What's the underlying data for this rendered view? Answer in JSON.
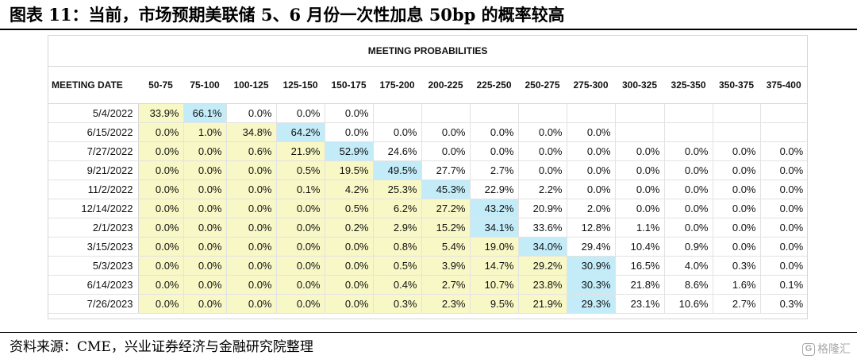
{
  "figure": {
    "title": "图表 11：当前，市场预期美联储 5、6 月份一次性加息 50bp 的概率较高",
    "source": "资料来源：CME，兴业证券经济与金融研究院整理",
    "watermark": "格隆汇",
    "watermark_icon": "G"
  },
  "table": {
    "title": "MEETING PROBABILITIES",
    "date_header": "MEETING DATE",
    "columns": [
      "50-75",
      "75-100",
      "100-125",
      "125-150",
      "150-175",
      "175-200",
      "200-225",
      "225-250",
      "250-275",
      "275-300",
      "300-325",
      "325-350",
      "350-375",
      "375-400"
    ],
    "rows": [
      {
        "date": "5/4/2022",
        "cells": [
          {
            "v": "33.9%",
            "c": "y"
          },
          {
            "v": "66.1%",
            "c": "b"
          },
          {
            "v": "0.0%",
            "c": ""
          },
          {
            "v": "0.0%",
            "c": ""
          },
          {
            "v": "0.0%",
            "c": ""
          },
          {
            "v": "",
            "c": ""
          },
          {
            "v": "",
            "c": ""
          },
          {
            "v": "",
            "c": ""
          },
          {
            "v": "",
            "c": ""
          },
          {
            "v": "",
            "c": ""
          },
          {
            "v": "",
            "c": ""
          },
          {
            "v": "",
            "c": ""
          },
          {
            "v": "",
            "c": ""
          },
          {
            "v": "",
            "c": ""
          }
        ]
      },
      {
        "date": "6/15/2022",
        "cells": [
          {
            "v": "0.0%",
            "c": "y"
          },
          {
            "v": "1.0%",
            "c": "y"
          },
          {
            "v": "34.8%",
            "c": "y"
          },
          {
            "v": "64.2%",
            "c": "b"
          },
          {
            "v": "0.0%",
            "c": ""
          },
          {
            "v": "0.0%",
            "c": ""
          },
          {
            "v": "0.0%",
            "c": ""
          },
          {
            "v": "0.0%",
            "c": ""
          },
          {
            "v": "0.0%",
            "c": ""
          },
          {
            "v": "0.0%",
            "c": ""
          },
          {
            "v": "",
            "c": ""
          },
          {
            "v": "",
            "c": ""
          },
          {
            "v": "",
            "c": ""
          },
          {
            "v": "",
            "c": ""
          }
        ]
      },
      {
        "date": "7/27/2022",
        "cells": [
          {
            "v": "0.0%",
            "c": "y"
          },
          {
            "v": "0.0%",
            "c": "y"
          },
          {
            "v": "0.6%",
            "c": "y"
          },
          {
            "v": "21.9%",
            "c": "y"
          },
          {
            "v": "52.9%",
            "c": "b"
          },
          {
            "v": "24.6%",
            "c": ""
          },
          {
            "v": "0.0%",
            "c": ""
          },
          {
            "v": "0.0%",
            "c": ""
          },
          {
            "v": "0.0%",
            "c": ""
          },
          {
            "v": "0.0%",
            "c": ""
          },
          {
            "v": "0.0%",
            "c": ""
          },
          {
            "v": "0.0%",
            "c": ""
          },
          {
            "v": "0.0%",
            "c": ""
          },
          {
            "v": "0.0%",
            "c": ""
          }
        ]
      },
      {
        "date": "9/21/2022",
        "cells": [
          {
            "v": "0.0%",
            "c": "y"
          },
          {
            "v": "0.0%",
            "c": "y"
          },
          {
            "v": "0.0%",
            "c": "y"
          },
          {
            "v": "0.5%",
            "c": "y"
          },
          {
            "v": "19.5%",
            "c": "y"
          },
          {
            "v": "49.5%",
            "c": "b"
          },
          {
            "v": "27.7%",
            "c": ""
          },
          {
            "v": "2.7%",
            "c": ""
          },
          {
            "v": "0.0%",
            "c": ""
          },
          {
            "v": "0.0%",
            "c": ""
          },
          {
            "v": "0.0%",
            "c": ""
          },
          {
            "v": "0.0%",
            "c": ""
          },
          {
            "v": "0.0%",
            "c": ""
          },
          {
            "v": "0.0%",
            "c": ""
          }
        ]
      },
      {
        "date": "11/2/2022",
        "cells": [
          {
            "v": "0.0%",
            "c": "y"
          },
          {
            "v": "0.0%",
            "c": "y"
          },
          {
            "v": "0.0%",
            "c": "y"
          },
          {
            "v": "0.1%",
            "c": "y"
          },
          {
            "v": "4.2%",
            "c": "y"
          },
          {
            "v": "25.3%",
            "c": "y"
          },
          {
            "v": "45.3%",
            "c": "b"
          },
          {
            "v": "22.9%",
            "c": ""
          },
          {
            "v": "2.2%",
            "c": ""
          },
          {
            "v": "0.0%",
            "c": ""
          },
          {
            "v": "0.0%",
            "c": ""
          },
          {
            "v": "0.0%",
            "c": ""
          },
          {
            "v": "0.0%",
            "c": ""
          },
          {
            "v": "0.0%",
            "c": ""
          }
        ]
      },
      {
        "date": "12/14/2022",
        "cells": [
          {
            "v": "0.0%",
            "c": "y"
          },
          {
            "v": "0.0%",
            "c": "y"
          },
          {
            "v": "0.0%",
            "c": "y"
          },
          {
            "v": "0.0%",
            "c": "y"
          },
          {
            "v": "0.5%",
            "c": "y"
          },
          {
            "v": "6.2%",
            "c": "y"
          },
          {
            "v": "27.2%",
            "c": "y"
          },
          {
            "v": "43.2%",
            "c": "b"
          },
          {
            "v": "20.9%",
            "c": ""
          },
          {
            "v": "2.0%",
            "c": ""
          },
          {
            "v": "0.0%",
            "c": ""
          },
          {
            "v": "0.0%",
            "c": ""
          },
          {
            "v": "0.0%",
            "c": ""
          },
          {
            "v": "0.0%",
            "c": ""
          }
        ]
      },
      {
        "date": "2/1/2023",
        "cells": [
          {
            "v": "0.0%",
            "c": "y"
          },
          {
            "v": "0.0%",
            "c": "y"
          },
          {
            "v": "0.0%",
            "c": "y"
          },
          {
            "v": "0.0%",
            "c": "y"
          },
          {
            "v": "0.2%",
            "c": "y"
          },
          {
            "v": "2.9%",
            "c": "y"
          },
          {
            "v": "15.2%",
            "c": "y"
          },
          {
            "v": "34.1%",
            "c": "b"
          },
          {
            "v": "33.6%",
            "c": ""
          },
          {
            "v": "12.8%",
            "c": ""
          },
          {
            "v": "1.1%",
            "c": ""
          },
          {
            "v": "0.0%",
            "c": ""
          },
          {
            "v": "0.0%",
            "c": ""
          },
          {
            "v": "0.0%",
            "c": ""
          }
        ]
      },
      {
        "date": "3/15/2023",
        "cells": [
          {
            "v": "0.0%",
            "c": "y"
          },
          {
            "v": "0.0%",
            "c": "y"
          },
          {
            "v": "0.0%",
            "c": "y"
          },
          {
            "v": "0.0%",
            "c": "y"
          },
          {
            "v": "0.0%",
            "c": "y"
          },
          {
            "v": "0.8%",
            "c": "y"
          },
          {
            "v": "5.4%",
            "c": "y"
          },
          {
            "v": "19.0%",
            "c": "y"
          },
          {
            "v": "34.0%",
            "c": "b"
          },
          {
            "v": "29.4%",
            "c": ""
          },
          {
            "v": "10.4%",
            "c": ""
          },
          {
            "v": "0.9%",
            "c": ""
          },
          {
            "v": "0.0%",
            "c": ""
          },
          {
            "v": "0.0%",
            "c": ""
          }
        ]
      },
      {
        "date": "5/3/2023",
        "cells": [
          {
            "v": "0.0%",
            "c": "y"
          },
          {
            "v": "0.0%",
            "c": "y"
          },
          {
            "v": "0.0%",
            "c": "y"
          },
          {
            "v": "0.0%",
            "c": "y"
          },
          {
            "v": "0.0%",
            "c": "y"
          },
          {
            "v": "0.5%",
            "c": "y"
          },
          {
            "v": "3.9%",
            "c": "y"
          },
          {
            "v": "14.7%",
            "c": "y"
          },
          {
            "v": "29.2%",
            "c": "y"
          },
          {
            "v": "30.9%",
            "c": "b"
          },
          {
            "v": "16.5%",
            "c": ""
          },
          {
            "v": "4.0%",
            "c": ""
          },
          {
            "v": "0.3%",
            "c": ""
          },
          {
            "v": "0.0%",
            "c": ""
          }
        ]
      },
      {
        "date": "6/14/2023",
        "cells": [
          {
            "v": "0.0%",
            "c": "y"
          },
          {
            "v": "0.0%",
            "c": "y"
          },
          {
            "v": "0.0%",
            "c": "y"
          },
          {
            "v": "0.0%",
            "c": "y"
          },
          {
            "v": "0.0%",
            "c": "y"
          },
          {
            "v": "0.4%",
            "c": "y"
          },
          {
            "v": "2.7%",
            "c": "y"
          },
          {
            "v": "10.7%",
            "c": "y"
          },
          {
            "v": "23.8%",
            "c": "y"
          },
          {
            "v": "30.3%",
            "c": "b"
          },
          {
            "v": "21.8%",
            "c": ""
          },
          {
            "v": "8.6%",
            "c": ""
          },
          {
            "v": "1.6%",
            "c": ""
          },
          {
            "v": "0.1%",
            "c": ""
          }
        ]
      },
      {
        "date": "7/26/2023",
        "cells": [
          {
            "v": "0.0%",
            "c": "y"
          },
          {
            "v": "0.0%",
            "c": "y"
          },
          {
            "v": "0.0%",
            "c": "y"
          },
          {
            "v": "0.0%",
            "c": "y"
          },
          {
            "v": "0.0%",
            "c": "y"
          },
          {
            "v": "0.3%",
            "c": "y"
          },
          {
            "v": "2.3%",
            "c": "y"
          },
          {
            "v": "9.5%",
            "c": "y"
          },
          {
            "v": "21.9%",
            "c": "y"
          },
          {
            "v": "29.3%",
            "c": "b"
          },
          {
            "v": "23.1%",
            "c": ""
          },
          {
            "v": "10.6%",
            "c": ""
          },
          {
            "v": "2.7%",
            "c": ""
          },
          {
            "v": "0.3%",
            "c": ""
          }
        ]
      }
    ]
  },
  "colors": {
    "highlight_yellow": "#f8f8c6",
    "highlight_blue": "#c3ecf8"
  }
}
